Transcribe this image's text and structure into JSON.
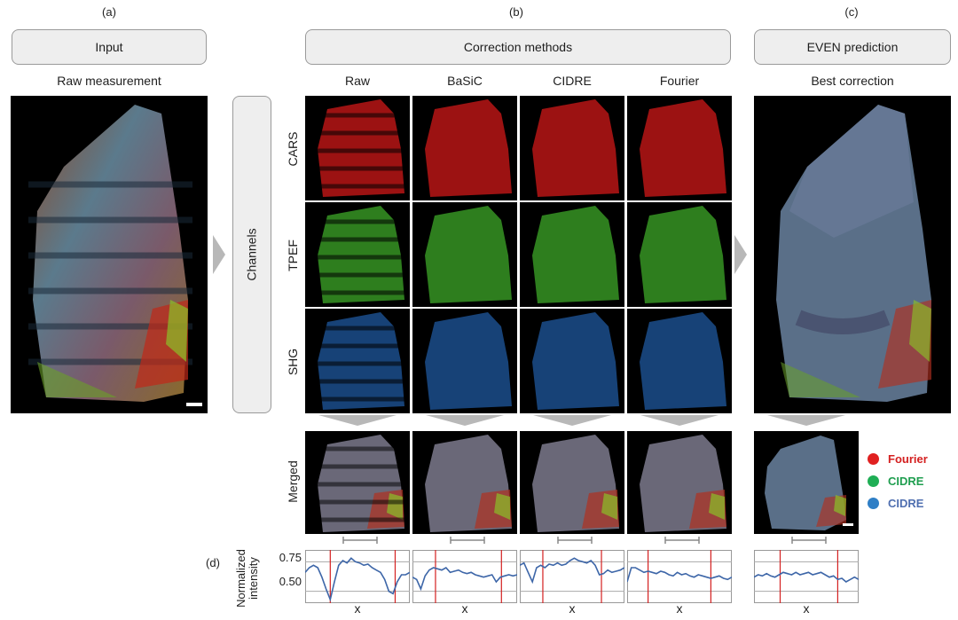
{
  "panels": {
    "a": "(a)",
    "b": "(b)",
    "c": "(c)",
    "d": "(d)"
  },
  "headers": {
    "input": "Input",
    "correction": "Correction methods",
    "even": "EVEN prediction"
  },
  "subtitles": {
    "raw_measurement": "Raw measurement",
    "best_correction": "Best correction"
  },
  "channels_box": "Channels",
  "method_columns": [
    "Raw",
    "BaSiC",
    "CIDRE",
    "Fourier"
  ],
  "channel_rows": [
    "CARS",
    "TPEF",
    "SHG"
  ],
  "merged_label": "Merged",
  "legend": [
    {
      "label": "Fourier",
      "color": "#e02020",
      "text_color": "#d42020"
    },
    {
      "label": "CIDRE",
      "color": "#1fae55",
      "text_color": "#1f9e4f"
    },
    {
      "label": "CIDRE",
      "color": "#2f7fc6",
      "text_color": "#4f6fb0"
    }
  ],
  "channel_colors": {
    "CARS": "#d01818",
    "TPEF": "#3ea828",
    "SHG": "#2a78d8"
  },
  "profile_axis": {
    "ylabel": "Normalized\nintensity",
    "yticks": [
      "0.75",
      "0.50"
    ],
    "xlabel": "x"
  },
  "chart_data": [
    {
      "type": "line",
      "title": "Raw",
      "ylim": [
        0.4,
        0.85
      ],
      "yticks": [
        0.75,
        0.5
      ],
      "xlabel": "x",
      "series": [
        {
          "values": [
            0.66,
            0.7,
            0.72,
            0.7,
            0.62,
            0.52,
            0.43,
            0.58,
            0.72,
            0.76,
            0.74,
            0.78,
            0.75,
            0.74,
            0.72,
            0.73,
            0.7,
            0.68,
            0.66,
            0.6,
            0.5,
            0.48,
            0.58,
            0.64,
            0.64,
            0.66
          ]
        }
      ]
    },
    {
      "type": "line",
      "title": "BaSiC",
      "ylim": [
        0.4,
        0.85
      ],
      "yticks": [
        0.75,
        0.5
      ],
      "xlabel": "x",
      "series": [
        {
          "values": [
            0.62,
            0.6,
            0.52,
            0.63,
            0.68,
            0.7,
            0.69,
            0.68,
            0.7,
            0.66,
            0.67,
            0.68,
            0.66,
            0.65,
            0.66,
            0.64,
            0.63,
            0.62,
            0.63,
            0.64,
            0.58,
            0.62,
            0.63,
            0.64,
            0.63,
            0.64
          ]
        }
      ]
    },
    {
      "type": "line",
      "title": "CIDRE",
      "ylim": [
        0.4,
        0.85
      ],
      "yticks": [
        0.75,
        0.5
      ],
      "xlabel": "x",
      "series": [
        {
          "values": [
            0.72,
            0.74,
            0.66,
            0.58,
            0.7,
            0.72,
            0.7,
            0.73,
            0.72,
            0.74,
            0.72,
            0.73,
            0.76,
            0.78,
            0.76,
            0.75,
            0.74,
            0.76,
            0.72,
            0.64,
            0.65,
            0.68,
            0.66,
            0.67,
            0.68,
            0.7
          ]
        }
      ]
    },
    {
      "type": "line",
      "title": "Fourier",
      "ylim": [
        0.4,
        0.85
      ],
      "yticks": [
        0.75,
        0.5
      ],
      "xlabel": "x",
      "series": [
        {
          "values": [
            0.58,
            0.7,
            0.7,
            0.68,
            0.66,
            0.67,
            0.66,
            0.65,
            0.67,
            0.66,
            0.64,
            0.63,
            0.66,
            0.64,
            0.65,
            0.63,
            0.62,
            0.64,
            0.63,
            0.62,
            0.61,
            0.62,
            0.63,
            0.61,
            0.6,
            0.62
          ]
        }
      ]
    },
    {
      "type": "line",
      "title": "Best correction",
      "ylim": [
        0.4,
        0.85
      ],
      "yticks": [
        0.75,
        0.5
      ],
      "xlabel": "x",
      "series": [
        {
          "values": [
            0.62,
            0.64,
            0.63,
            0.65,
            0.63,
            0.62,
            0.64,
            0.66,
            0.65,
            0.64,
            0.66,
            0.64,
            0.65,
            0.66,
            0.64,
            0.65,
            0.66,
            0.64,
            0.62,
            0.63,
            0.6,
            0.61,
            0.58,
            0.6,
            0.62,
            0.6
          ]
        }
      ]
    }
  ]
}
